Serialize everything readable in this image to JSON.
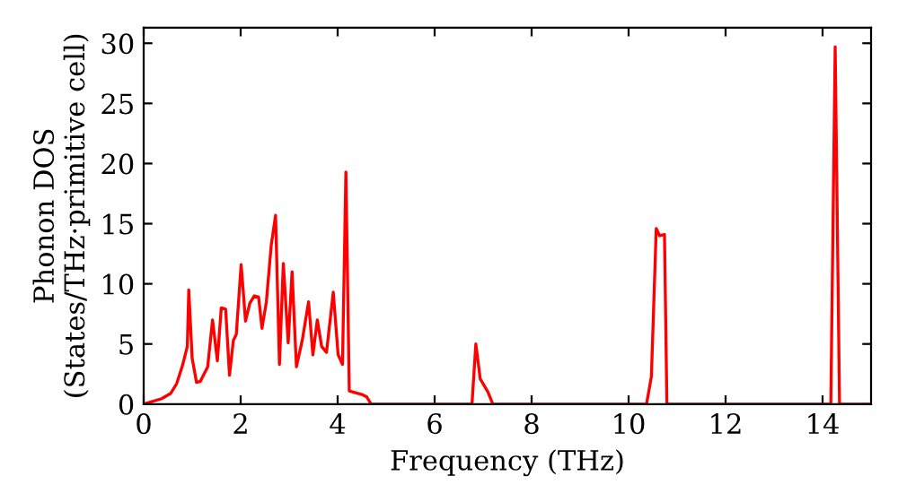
{
  "chart_data": {
    "type": "line",
    "xlabel": "Frequency (THz)",
    "ylabel": "Phonon DOS\n(States/THz·primitive cell)",
    "series": [
      {
        "color": "#ff0000",
        "x": [
          0,
          0.37,
          0.56,
          0.68,
          0.8,
          0.9,
          0.93,
          1.0,
          1.09,
          1.17,
          1.32,
          1.42,
          1.52,
          1.6,
          1.69,
          1.77,
          1.85,
          1.91,
          2.01,
          2.1,
          2.19,
          2.28,
          2.37,
          2.44,
          2.53,
          2.63,
          2.72,
          2.8,
          2.88,
          2.98,
          3.06,
          3.15,
          3.27,
          3.4,
          3.49,
          3.58,
          3.67,
          3.77,
          3.91,
          4.01,
          4.1,
          4.17,
          4.24,
          4.5,
          4.6,
          4.69,
          6.77,
          6.85,
          6.94,
          7.1,
          7.2,
          10.37,
          10.47,
          10.57,
          10.64,
          10.74,
          10.79,
          14.17,
          14.26,
          14.35,
          15
        ],
        "values": [
          0,
          0.45,
          0.9,
          1.7,
          3.2,
          4.8,
          9.5,
          3.8,
          1.8,
          1.9,
          3.1,
          7.0,
          3.6,
          8.0,
          7.9,
          2.4,
          5.3,
          5.8,
          11.6,
          6.9,
          8.4,
          9.0,
          8.9,
          6.3,
          8.5,
          13.2,
          15.7,
          3.3,
          11.7,
          5.1,
          11.0,
          3.1,
          5.3,
          8.5,
          4.1,
          7.0,
          4.8,
          4.3,
          9.3,
          4.1,
          3.3,
          19.3,
          1.1,
          0.8,
          0.6,
          0,
          0,
          5.0,
          2.1,
          1.0,
          0,
          0,
          2.3,
          14.6,
          14.0,
          14.1,
          0,
          0,
          29.7,
          0,
          0
        ]
      }
    ],
    "xlim": [
      0,
      15
    ],
    "ylim": [
      0,
      31.3
    ],
    "xticks": [
      0,
      2,
      4,
      6,
      8,
      10,
      12,
      14
    ],
    "yticks": [
      0,
      5,
      10,
      15,
      20,
      25,
      30
    ],
    "grid": false,
    "legend": false,
    "marker": "none",
    "line_style": "solid"
  }
}
